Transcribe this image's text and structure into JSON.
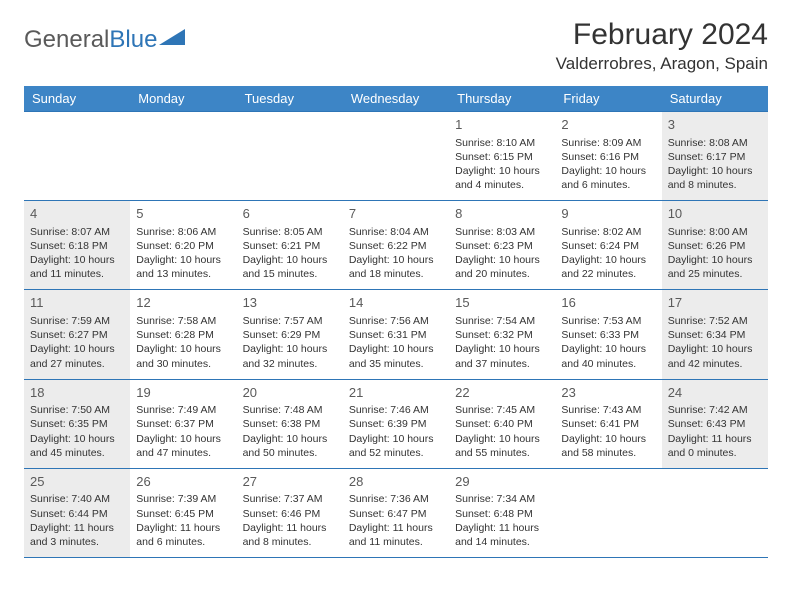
{
  "logo": {
    "text1": "General",
    "text2": "Blue"
  },
  "title": "February 2024",
  "location": "Valderrobres, Aragon, Spain",
  "colors": {
    "header_bg": "#3d85c6",
    "border": "#2e75b6",
    "weekend_bg": "#ececec",
    "text": "#333333",
    "logo_blue": "#2e75b6"
  },
  "day_headers": [
    "Sunday",
    "Monday",
    "Tuesday",
    "Wednesday",
    "Thursday",
    "Friday",
    "Saturday"
  ],
  "weeks": [
    [
      null,
      null,
      null,
      null,
      {
        "n": "1",
        "sr": "8:10 AM",
        "ss": "6:15 PM",
        "dl": "10 hours and 4 minutes."
      },
      {
        "n": "2",
        "sr": "8:09 AM",
        "ss": "6:16 PM",
        "dl": "10 hours and 6 minutes."
      },
      {
        "n": "3",
        "sr": "8:08 AM",
        "ss": "6:17 PM",
        "dl": "10 hours and 8 minutes."
      }
    ],
    [
      {
        "n": "4",
        "sr": "8:07 AM",
        "ss": "6:18 PM",
        "dl": "10 hours and 11 minutes."
      },
      {
        "n": "5",
        "sr": "8:06 AM",
        "ss": "6:20 PM",
        "dl": "10 hours and 13 minutes."
      },
      {
        "n": "6",
        "sr": "8:05 AM",
        "ss": "6:21 PM",
        "dl": "10 hours and 15 minutes."
      },
      {
        "n": "7",
        "sr": "8:04 AM",
        "ss": "6:22 PM",
        "dl": "10 hours and 18 minutes."
      },
      {
        "n": "8",
        "sr": "8:03 AM",
        "ss": "6:23 PM",
        "dl": "10 hours and 20 minutes."
      },
      {
        "n": "9",
        "sr": "8:02 AM",
        "ss": "6:24 PM",
        "dl": "10 hours and 22 minutes."
      },
      {
        "n": "10",
        "sr": "8:00 AM",
        "ss": "6:26 PM",
        "dl": "10 hours and 25 minutes."
      }
    ],
    [
      {
        "n": "11",
        "sr": "7:59 AM",
        "ss": "6:27 PM",
        "dl": "10 hours and 27 minutes."
      },
      {
        "n": "12",
        "sr": "7:58 AM",
        "ss": "6:28 PM",
        "dl": "10 hours and 30 minutes."
      },
      {
        "n": "13",
        "sr": "7:57 AM",
        "ss": "6:29 PM",
        "dl": "10 hours and 32 minutes."
      },
      {
        "n": "14",
        "sr": "7:56 AM",
        "ss": "6:31 PM",
        "dl": "10 hours and 35 minutes."
      },
      {
        "n": "15",
        "sr": "7:54 AM",
        "ss": "6:32 PM",
        "dl": "10 hours and 37 minutes."
      },
      {
        "n": "16",
        "sr": "7:53 AM",
        "ss": "6:33 PM",
        "dl": "10 hours and 40 minutes."
      },
      {
        "n": "17",
        "sr": "7:52 AM",
        "ss": "6:34 PM",
        "dl": "10 hours and 42 minutes."
      }
    ],
    [
      {
        "n": "18",
        "sr": "7:50 AM",
        "ss": "6:35 PM",
        "dl": "10 hours and 45 minutes."
      },
      {
        "n": "19",
        "sr": "7:49 AM",
        "ss": "6:37 PM",
        "dl": "10 hours and 47 minutes."
      },
      {
        "n": "20",
        "sr": "7:48 AM",
        "ss": "6:38 PM",
        "dl": "10 hours and 50 minutes."
      },
      {
        "n": "21",
        "sr": "7:46 AM",
        "ss": "6:39 PM",
        "dl": "10 hours and 52 minutes."
      },
      {
        "n": "22",
        "sr": "7:45 AM",
        "ss": "6:40 PM",
        "dl": "10 hours and 55 minutes."
      },
      {
        "n": "23",
        "sr": "7:43 AM",
        "ss": "6:41 PM",
        "dl": "10 hours and 58 minutes."
      },
      {
        "n": "24",
        "sr": "7:42 AM",
        "ss": "6:43 PM",
        "dl": "11 hours and 0 minutes."
      }
    ],
    [
      {
        "n": "25",
        "sr": "7:40 AM",
        "ss": "6:44 PM",
        "dl": "11 hours and 3 minutes."
      },
      {
        "n": "26",
        "sr": "7:39 AM",
        "ss": "6:45 PM",
        "dl": "11 hours and 6 minutes."
      },
      {
        "n": "27",
        "sr": "7:37 AM",
        "ss": "6:46 PM",
        "dl": "11 hours and 8 minutes."
      },
      {
        "n": "28",
        "sr": "7:36 AM",
        "ss": "6:47 PM",
        "dl": "11 hours and 11 minutes."
      },
      {
        "n": "29",
        "sr": "7:34 AM",
        "ss": "6:48 PM",
        "dl": "11 hours and 14 minutes."
      },
      null,
      null
    ]
  ],
  "labels": {
    "sunrise": "Sunrise: ",
    "sunset": "Sunset: ",
    "daylight": "Daylight: "
  }
}
